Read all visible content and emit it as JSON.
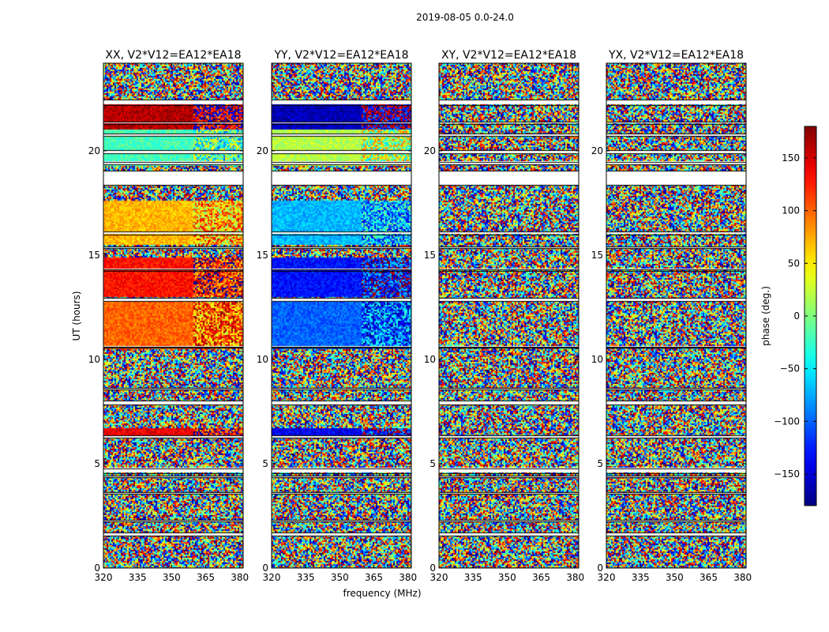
{
  "chart_data": {
    "type": "heatmap",
    "suptitle": "2019-08-05 0.0-24.0",
    "xlabel": "frequency (MHz)",
    "ylabel": "UT (hours)",
    "x_range": [
      320,
      381.5
    ],
    "x_ticks": [
      320,
      335,
      350,
      365,
      380
    ],
    "y_range": [
      0,
      24.2
    ],
    "y_ticks": [
      0,
      5,
      10,
      15,
      20
    ],
    "panels": [
      {
        "title": "XX, V2*V12=EA12*EA18",
        "coherent": true,
        "phase_sign": 1
      },
      {
        "title": "YY, V2*V12=EA12*EA18",
        "coherent": true,
        "phase_sign": -1
      },
      {
        "title": "XY, V2*V12=EA12*EA18",
        "coherent": false,
        "phase_sign": 1
      },
      {
        "title": "YX, V2*V12=EA12*EA18",
        "coherent": false,
        "phase_sign": 1
      }
    ],
    "colorbar": {
      "label": "phase (deg.)",
      "range": [
        -180,
        180
      ],
      "ticks": [
        150,
        100,
        50,
        0,
        -50,
        -100,
        -150
      ],
      "tick_labels": [
        "150",
        "100",
        "50",
        "0",
        "−50",
        "−100",
        "−150"
      ],
      "colormap": "jet"
    },
    "flagged_ut_bands": [
      [
        1.55,
        1.72
      ],
      [
        2.25,
        2.32
      ],
      [
        3.55,
        3.62
      ],
      [
        4.35,
        4.42
      ],
      [
        4.55,
        4.78
      ],
      [
        6.25,
        6.35
      ],
      [
        7.85,
        8.02
      ],
      [
        8.55,
        8.62
      ],
      [
        10.55,
        10.62
      ],
      [
        12.8,
        12.95
      ],
      [
        14.25,
        14.32
      ],
      [
        15.35,
        15.42
      ],
      [
        16.0,
        16.12
      ],
      [
        18.35,
        19.05
      ],
      [
        19.35,
        19.48
      ],
      [
        19.9,
        20.05
      ],
      [
        20.7,
        20.82
      ],
      [
        21.3,
        21.38
      ],
      [
        22.2,
        22.45
      ]
    ],
    "coherent_ut_bands": [
      {
        "ut": [
          6.3,
          6.7
        ],
        "phase": 140
      },
      {
        "ut": [
          10.5,
          12.8
        ],
        "phase": 100
      },
      {
        "ut": [
          13.0,
          14.9
        ],
        "phase": 130
      },
      {
        "ut": [
          15.5,
          17.6
        ],
        "phase": 70
      },
      {
        "ut": [
          19.3,
          21.0
        ],
        "phase": -20
      },
      {
        "ut": [
          21.0,
          22.2
        ],
        "phase": 160
      }
    ]
  }
}
